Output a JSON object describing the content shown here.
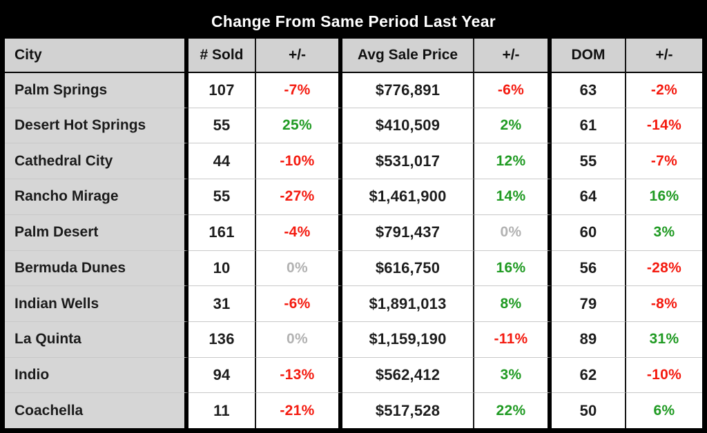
{
  "chart_data": {
    "type": "table",
    "title": "Change From Same Period Last Year",
    "columns": [
      "City",
      "# Sold",
      "+/-",
      "Avg Sale Price",
      "+/-",
      "DOM",
      "+/-"
    ],
    "rows": [
      {
        "city": "Palm Springs",
        "sold": "107",
        "sold_change": "-7%",
        "sold_dir": "neg",
        "price": "$776,891",
        "price_change": "-6%",
        "price_dir": "neg",
        "dom": "63",
        "dom_change": "-2%",
        "dom_dir": "neg"
      },
      {
        "city": "Desert Hot Springs",
        "sold": "55",
        "sold_change": "25%",
        "sold_dir": "pos",
        "price": "$410,509",
        "price_change": "2%",
        "price_dir": "pos",
        "dom": "61",
        "dom_change": "-14%",
        "dom_dir": "neg"
      },
      {
        "city": "Cathedral City",
        "sold": "44",
        "sold_change": "-10%",
        "sold_dir": "neg",
        "price": "$531,017",
        "price_change": "12%",
        "price_dir": "pos",
        "dom": "55",
        "dom_change": "-7%",
        "dom_dir": "neg"
      },
      {
        "city": "Rancho Mirage",
        "sold": "55",
        "sold_change": "-27%",
        "sold_dir": "neg",
        "price": "$1,461,900",
        "price_change": "14%",
        "price_dir": "pos",
        "dom": "64",
        "dom_change": "16%",
        "dom_dir": "pos"
      },
      {
        "city": "Palm Desert",
        "sold": "161",
        "sold_change": "-4%",
        "sold_dir": "neg",
        "price": "$791,437",
        "price_change": "0%",
        "price_dir": "zero",
        "dom": "60",
        "dom_change": "3%",
        "dom_dir": "pos"
      },
      {
        "city": "Bermuda Dunes",
        "sold": "10",
        "sold_change": "0%",
        "sold_dir": "zero",
        "price": "$616,750",
        "price_change": "16%",
        "price_dir": "pos",
        "dom": "56",
        "dom_change": "-28%",
        "dom_dir": "neg"
      },
      {
        "city": "Indian Wells",
        "sold": "31",
        "sold_change": "-6%",
        "sold_dir": "neg",
        "price": "$1,891,013",
        "price_change": "8%",
        "price_dir": "pos",
        "dom": "79",
        "dom_change": "-8%",
        "dom_dir": "neg"
      },
      {
        "city": "La Quinta",
        "sold": "136",
        "sold_change": "0%",
        "sold_dir": "zero",
        "price": "$1,159,190",
        "price_change": "-11%",
        "price_dir": "neg",
        "dom": "89",
        "dom_change": "31%",
        "dom_dir": "pos"
      },
      {
        "city": "Indio",
        "sold": "94",
        "sold_change": "-13%",
        "sold_dir": "neg",
        "price": "$562,412",
        "price_change": "3%",
        "price_dir": "pos",
        "dom": "62",
        "dom_change": "-10%",
        "dom_dir": "neg"
      },
      {
        "city": "Coachella",
        "sold": "11",
        "sold_change": "-21%",
        "sold_dir": "neg",
        "price": "$517,528",
        "price_change": "22%",
        "price_dir": "pos",
        "dom": "50",
        "dom_change": "6%",
        "dom_dir": "pos"
      }
    ]
  },
  "colors": {
    "positive_green": "#1f9a22",
    "negative_red": "#f41a0f",
    "neutral_gray": "#b2b2b2",
    "header_bg": "#d2d2d2",
    "city_column_bg": "#d6d6d6",
    "frame_black": "#000000"
  }
}
